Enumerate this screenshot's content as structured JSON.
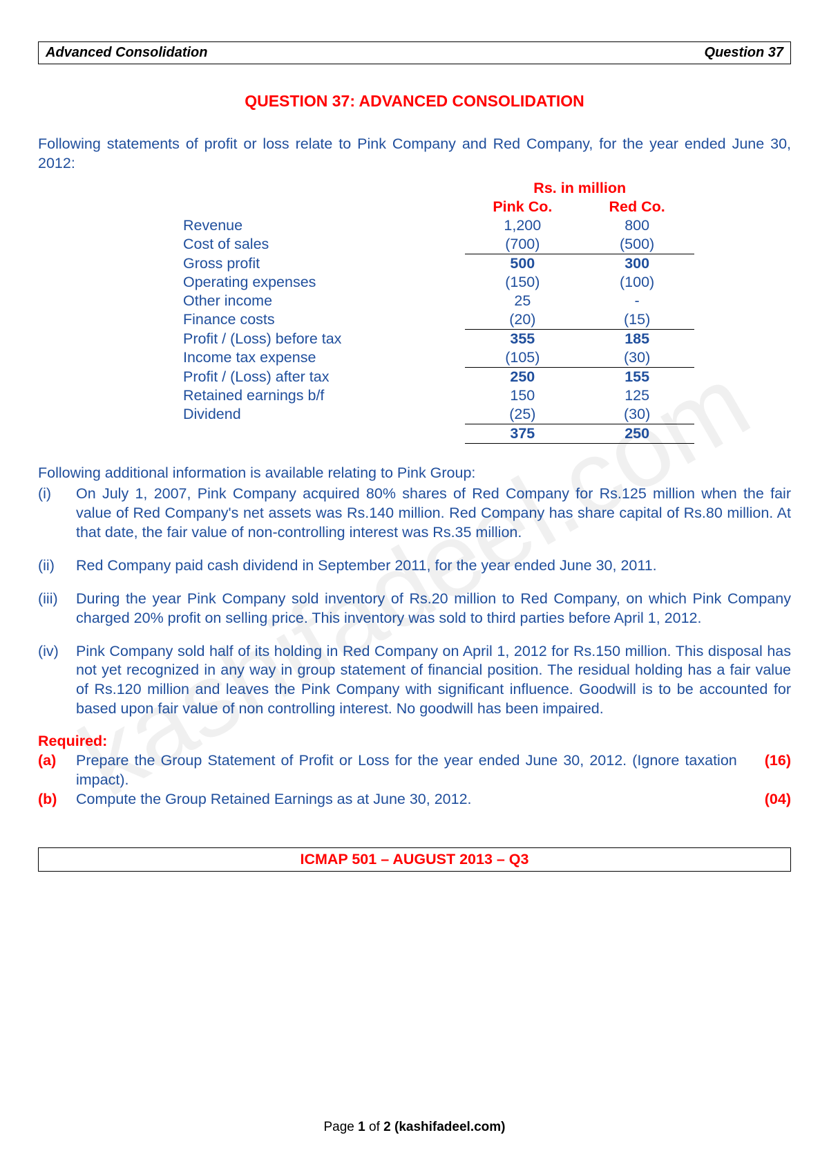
{
  "header": {
    "left": "Advanced Consolidation",
    "right": "Question 37"
  },
  "title": "QUESTION 37: ADVANCED CONSOLIDATION",
  "intro": "Following statements of profit or loss relate to Pink Company and Red Company, for the year ended June 30, 2012:",
  "table": {
    "superHeader": "Rs. in million",
    "cols": [
      "Pink Co.",
      "Red Co."
    ],
    "rows": [
      {
        "label": "Revenue",
        "v": [
          "1,200",
          "800"
        ],
        "bold": false,
        "topLine": false
      },
      {
        "label": "Cost of sales",
        "v": [
          "(700)",
          "(500)"
        ],
        "bold": false,
        "bottomLine": true
      },
      {
        "label": "Gross profit",
        "v": [
          "500",
          "300"
        ],
        "bold": true
      },
      {
        "label": "Operating expenses",
        "v": [
          "(150)",
          "(100)"
        ],
        "bold": false
      },
      {
        "label": "Other income",
        "v": [
          "25",
          "-"
        ],
        "bold": false
      },
      {
        "label": "Finance costs",
        "v": [
          "(20)",
          "(15)"
        ],
        "bold": false,
        "bottomLine": true
      },
      {
        "label": "Profit / (Loss) before tax",
        "v": [
          "355",
          "185"
        ],
        "bold": true
      },
      {
        "label": "Income tax expense",
        "v": [
          "(105)",
          "(30)"
        ],
        "bold": false,
        "bottomLine": true
      },
      {
        "label": "Profit / (Loss) after tax",
        "v": [
          "250",
          "155"
        ],
        "bold": true
      },
      {
        "label": "Retained earnings b/f",
        "v": [
          "150",
          "125"
        ],
        "bold": false
      },
      {
        "label": "Dividend",
        "v": [
          "(25)",
          "(30)"
        ],
        "bold": false,
        "bottomLine": true
      },
      {
        "label": "",
        "v": [
          "375",
          "250"
        ],
        "bold": true,
        "bottomLine": true
      }
    ]
  },
  "notesIntro": "Following additional information is available relating to Pink Group:",
  "notes": [
    {
      "n": "(i)",
      "t": "On July 1, 2007, Pink Company acquired 80% shares of Red Company for Rs.125 million when the fair value of Red Company's net assets was Rs.140 million. Red Company has share capital of Rs.80 million. At that date, the fair value of non-controlling interest was Rs.35 million."
    },
    {
      "n": "(ii)",
      "t": "Red Company paid cash dividend in September 2011, for the year ended June 30, 2011."
    },
    {
      "n": "(iii)",
      "t": "During the year Pink Company sold inventory of Rs.20 million to Red Company, on which Pink Company charged 20% profit on selling price. This inventory was sold to third parties before April 1, 2012."
    },
    {
      "n": "(iv)",
      "t": "Pink Company sold half of its holding in Red Company on April 1, 2012 for Rs.150 million. This disposal has not yet recognized in any way in group statement of financial position. The residual holding has a fair value of Rs.120 million and leaves the Pink Company with significant influence. Goodwill is to be accounted for based upon fair value of non controlling interest. No goodwill has been impaired."
    }
  ],
  "requiredLabel": "Required:",
  "required": [
    {
      "l": "(a)",
      "t": "Prepare the Group Statement of Profit or Loss for the year ended June 30, 2012. (Ignore taxation impact).",
      "m": "(16)"
    },
    {
      "l": "(b)",
      "t": "Compute the Group Retained Earnings as at June 30, 2012.",
      "m": "(04)"
    }
  ],
  "footerBox": "ICMAP 501 – AUGUST 2013 – Q3",
  "pageFooter": {
    "a": "Page ",
    "b": "1",
    "c": " of ",
    "d": "2",
    "e": " (kashifadeel.com)"
  },
  "watermark": "kashifadeel.com",
  "colors": {
    "red": "#ff0000",
    "blue": "#1f4e9c",
    "black": "#000000",
    "bg": "#ffffff"
  }
}
